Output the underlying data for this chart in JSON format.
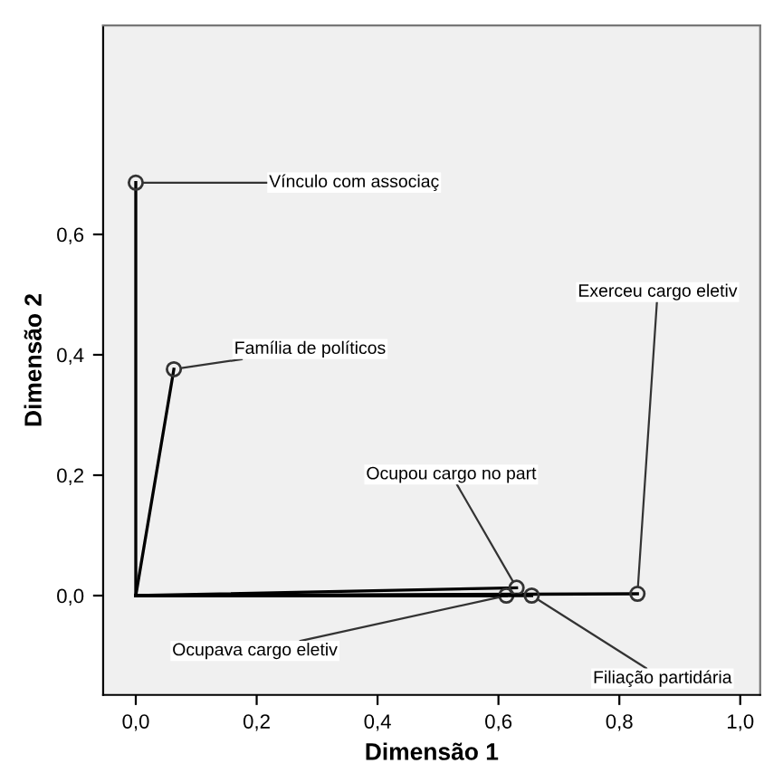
{
  "chart_data": {
    "type": "line",
    "xlabel": "Dimensão 1",
    "ylabel": "Dimensão 2",
    "xlim": [
      -0.054,
      1.033
    ],
    "ylim": [
      -0.165,
      0.947
    ],
    "xticks": [
      {
        "value": 0,
        "label": "0,0"
      },
      {
        "value": 0.2,
        "label": "0,2"
      },
      {
        "value": 0.4,
        "label": "0,4"
      },
      {
        "value": 0.6,
        "label": "0,6"
      },
      {
        "value": 0.8,
        "label": "0,8"
      },
      {
        "value": 1.0,
        "label": "1,0"
      }
    ],
    "yticks": [
      {
        "value": 0,
        "label": "0,0"
      },
      {
        "value": 0.2,
        "label": "0,2"
      },
      {
        "value": 0.4,
        "label": "0,4"
      },
      {
        "value": 0.6,
        "label": "0,6"
      }
    ],
    "marker": "circle",
    "line_style": "solid",
    "grid": false,
    "legend": false,
    "series": [
      {
        "name": "Vínculo com associaç",
        "color": "#000000",
        "x": [
          0,
          0
        ],
        "values": [
          0,
          0.686
        ]
      },
      {
        "name": "Família de políticos",
        "color": "#000000",
        "x": [
          0,
          0.063
        ],
        "values": [
          0,
          0.376
        ]
      },
      {
        "name": "Exerceu cargo eletiv",
        "color": "#000000",
        "x": [
          0,
          0.83
        ],
        "values": [
          0,
          0.003
        ]
      },
      {
        "name": "Ocupou cargo no part",
        "color": "#000000",
        "x": [
          0,
          0.63
        ],
        "values": [
          0,
          0.013
        ]
      },
      {
        "name": "Ocupava cargo eletiv",
        "color": "#000000",
        "x": [
          0,
          0.613
        ],
        "values": [
          0,
          0.0
        ]
      },
      {
        "name": "Filiação partidária",
        "color": "#000000",
        "x": [
          0,
          0.655
        ],
        "values": [
          0,
          0.0
        ]
      }
    ]
  }
}
